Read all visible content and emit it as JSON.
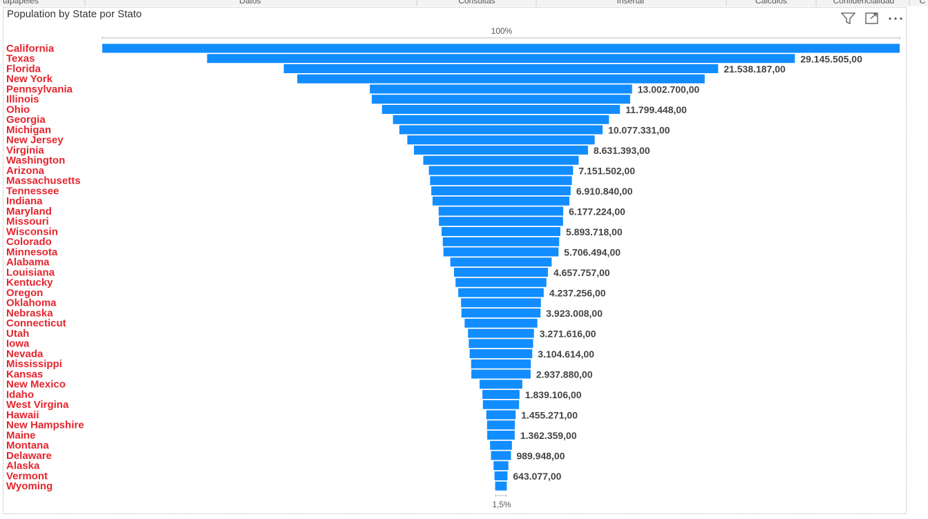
{
  "ribbon": [
    "tapapeles",
    "Datos",
    "Consultas",
    "Insertar",
    "Cálculos",
    "Confidencialidad",
    "C"
  ],
  "chart_data": {
    "type": "funnel",
    "title": "Population by State por Stato",
    "color": "#118dff",
    "top_label": "100%",
    "bottom_label": "1,5%",
    "categories": [
      "California",
      "Texas",
      "Florida",
      "New York",
      "Pennsylvania",
      "Illinois",
      "Ohio",
      "Georgia",
      "Michigan",
      "New Jersey",
      "Virginia",
      "Washington",
      "Arizona",
      "Massachusetts",
      "Tennessee",
      "Indiana",
      "Maryland",
      "Missouri",
      "Wisconsin",
      "Colorado",
      "Minnesota",
      "Alabama",
      "Louisiana",
      "Kentucky",
      "Oregon",
      "Oklahoma",
      "Nebraska",
      "Connecticut",
      "Utah",
      "Iowa",
      "Nevada",
      "Mississippi",
      "Kansas",
      "New Mexico",
      "Idaho",
      "West Virgina",
      "Hawaii",
      "New Hampshire",
      "Maine",
      "Montana",
      "Delaware",
      "Alaska",
      "Vermont",
      "Wyoming"
    ],
    "values": [
      39538223,
      29145505,
      21538187,
      20201249,
      13002700,
      12812508,
      11799448,
      10711908,
      10077331,
      9288994,
      8631393,
      7705281,
      7151502,
      7029917,
      6910840,
      6785528,
      6177224,
      6154913,
      5893718,
      5773714,
      5706494,
      5024279,
      4657757,
      4505836,
      4237256,
      3959353,
      3923008,
      3605944,
      3271616,
      3190369,
      3104614,
      2961279,
      2937880,
      2117522,
      1839106,
      1793716,
      1455271,
      1377529,
      1362359,
      1084225,
      989948,
      733391,
      643077,
      576851
    ],
    "value_labels": [
      null,
      "29.145.505,00",
      "21.538.187,00",
      null,
      "13.002.700,00",
      null,
      "11.799.448,00",
      null,
      "10.077.331,00",
      null,
      "8.631.393,00",
      null,
      "7.151.502,00",
      null,
      "6.910.840,00",
      null,
      "6.177.224,00",
      null,
      "5.893.718,00",
      null,
      "5.706.494,00",
      null,
      "4.657.757,00",
      null,
      "4.237.256,00",
      null,
      "3.923.008,00",
      null,
      "3.271.616,00",
      null,
      "3.104.614,00",
      null,
      "2.937.880,00",
      null,
      "1.839.106,00",
      null,
      "1.455.271,00",
      null,
      "1.362.359,00",
      null,
      "989.948,00",
      null,
      "643.077,00",
      null
    ]
  }
}
